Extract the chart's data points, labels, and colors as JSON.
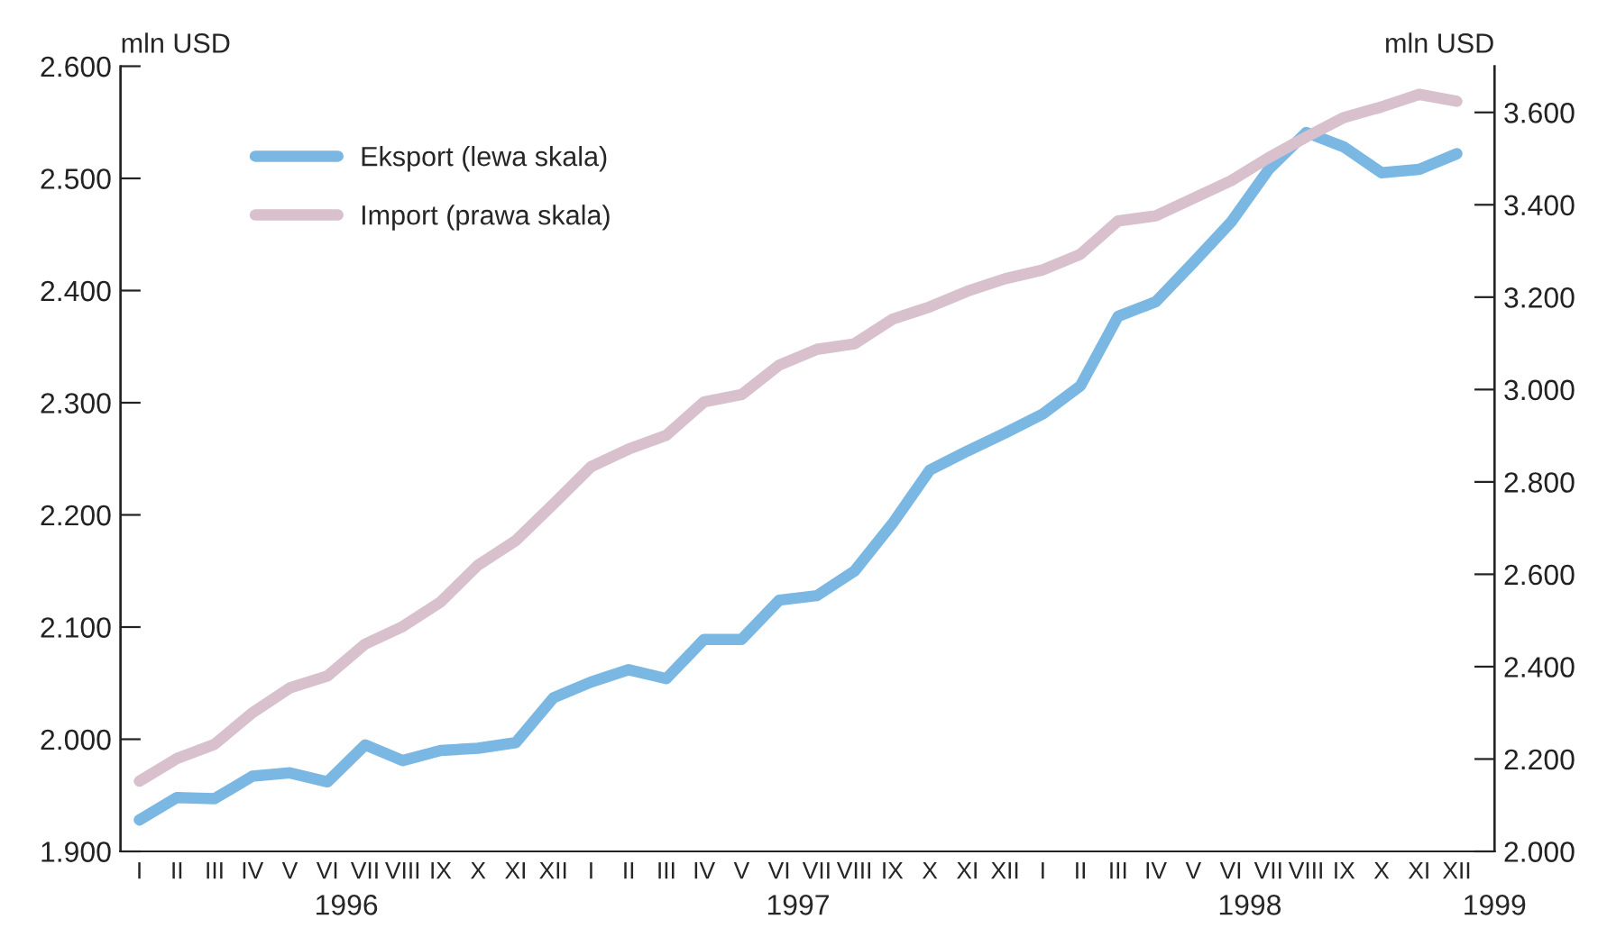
{
  "chart_data": {
    "type": "line",
    "categories": [
      "I",
      "II",
      "III",
      "IV",
      "V",
      "VI",
      "VII",
      "VIII",
      "IX",
      "X",
      "XI",
      "XII",
      "I",
      "II",
      "III",
      "IV",
      "V",
      "VI",
      "VII",
      "VIII",
      "IX",
      "X",
      "XI",
      "XII",
      "I",
      "II",
      "III",
      "IV",
      "V",
      "VI",
      "VII",
      "VIII",
      "IX",
      "X",
      "XI",
      "XII"
    ],
    "series": [
      {
        "name": "Eksport (lewa skala)",
        "color": "#7ab8e3",
        "values": [
          1928,
          1948,
          1947,
          1967,
          1970,
          1962,
          1995,
          1981,
          1990,
          1992,
          1997,
          2037,
          2051,
          2062,
          2054,
          2089,
          2089,
          2124,
          2128,
          2150,
          2192,
          2240,
          2257,
          2273,
          2290,
          2315,
          2377,
          2390,
          2425,
          2461,
          2508,
          2541,
          2528,
          2505,
          2508,
          2522
        ]
      },
      {
        "name": "Import (prawa skala)",
        "color": "#d8c0cc",
        "axis": "y2",
        "values": [
          2152,
          2201,
          2232,
          2300,
          2354,
          2380,
          2449,
          2487,
          2540,
          2620,
          2673,
          2752,
          2833,
          2871,
          2901,
          2973,
          2989,
          3053,
          3087,
          3099,
          3152,
          3179,
          3213,
          3240,
          3259,
          3293,
          3365,
          3376,
          3414,
          3452,
          3502,
          3547,
          3589,
          3612,
          3639,
          3624
        ]
      }
    ],
    "ylabel": "mln USD",
    "y2label": "mln USD",
    "ylim": [
      1900,
      2600
    ],
    "yticks": [
      {
        "value": 1900,
        "label": "1.900"
      },
      {
        "value": 2000,
        "label": "2.000"
      },
      {
        "value": 2100,
        "label": "2.100"
      },
      {
        "value": 2200,
        "label": "2.200"
      },
      {
        "value": 2300,
        "label": "2.300"
      },
      {
        "value": 2400,
        "label": "2.400"
      },
      {
        "value": 2500,
        "label": "2.500"
      },
      {
        "value": 2600,
        "label": "2.600"
      }
    ],
    "y2lim": [
      2000,
      3700
    ],
    "y2ticks": [
      {
        "value": 2000,
        "label": "2.000"
      },
      {
        "value": 2200,
        "label": "2.200"
      },
      {
        "value": 2400,
        "label": "2.400"
      },
      {
        "value": 2600,
        "label": "2.600"
      },
      {
        "value": 2800,
        "label": "2.800"
      },
      {
        "value": 3000,
        "label": "3.000"
      },
      {
        "value": 3200,
        "label": "3.200"
      },
      {
        "value": 3400,
        "label": "3.400"
      },
      {
        "value": 3600,
        "label": "3.600"
      }
    ],
    "annotations": [
      "1996",
      "1997",
      "1998",
      "1999"
    ],
    "legend": "top left",
    "grid": false,
    "marker": "none",
    "line_style": "solid"
  }
}
